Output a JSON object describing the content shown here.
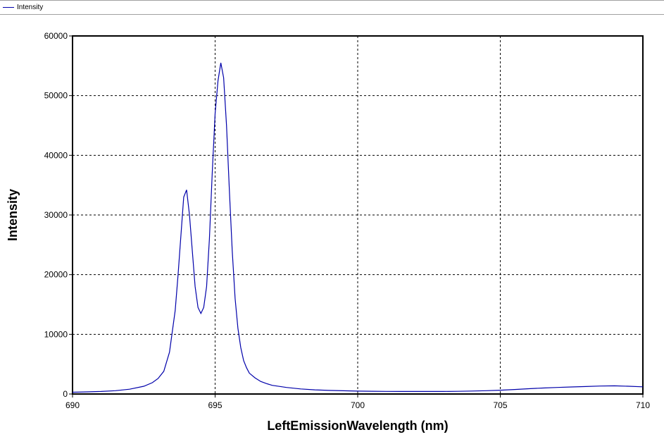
{
  "legend": {
    "label": "Intensity",
    "color": "#0000aa"
  },
  "chart_data": {
    "type": "line",
    "title": "",
    "xlabel": "LeftEmissionWavelength (nm)",
    "ylabel": "Intensity",
    "xlim": [
      690,
      710
    ],
    "ylim": [
      0,
      60000
    ],
    "grid": true,
    "legend_position": "top-left",
    "xticks": [
      690,
      695,
      700,
      705,
      710
    ],
    "yticks": [
      0,
      10000,
      20000,
      30000,
      40000,
      50000,
      60000
    ],
    "series": [
      {
        "name": "Intensity",
        "color": "#0000aa",
        "x": [
          690,
          690.5,
          691,
          691.5,
          692,
          692.5,
          692.8,
          693,
          693.2,
          693.4,
          693.6,
          693.7,
          693.8,
          693.9,
          694.0,
          694.1,
          694.2,
          694.3,
          694.4,
          694.5,
          694.6,
          694.7,
          694.8,
          694.9,
          695.0,
          695.1,
          695.2,
          695.3,
          695.4,
          695.5,
          695.6,
          695.7,
          695.8,
          695.9,
          696.0,
          696.1,
          696.2,
          696.4,
          696.6,
          696.8,
          697,
          697.5,
          698,
          698.5,
          699,
          699.5,
          700,
          700.5,
          701,
          701.5,
          702,
          702.5,
          703,
          703.5,
          704,
          704.5,
          705,
          705.5,
          706,
          706.5,
          707,
          707.5,
          708,
          708.5,
          709,
          709.5,
          710
        ],
        "y": [
          300,
          350,
          420,
          560,
          800,
          1300,
          1900,
          2600,
          3800,
          7000,
          14000,
          20000,
          26500,
          33000,
          34200,
          30000,
          24000,
          18000,
          14500,
          13500,
          14500,
          18000,
          26000,
          37000,
          47000,
          52500,
          55500,
          53000,
          45000,
          34000,
          24000,
          16000,
          11000,
          7800,
          5600,
          4400,
          3500,
          2700,
          2100,
          1750,
          1450,
          1100,
          850,
          700,
          600,
          540,
          490,
          460,
          440,
          430,
          420,
          420,
          430,
          450,
          500,
          560,
          640,
          750,
          880,
          1000,
          1100,
          1180,
          1250,
          1330,
          1370,
          1300,
          1200
        ]
      }
    ]
  }
}
